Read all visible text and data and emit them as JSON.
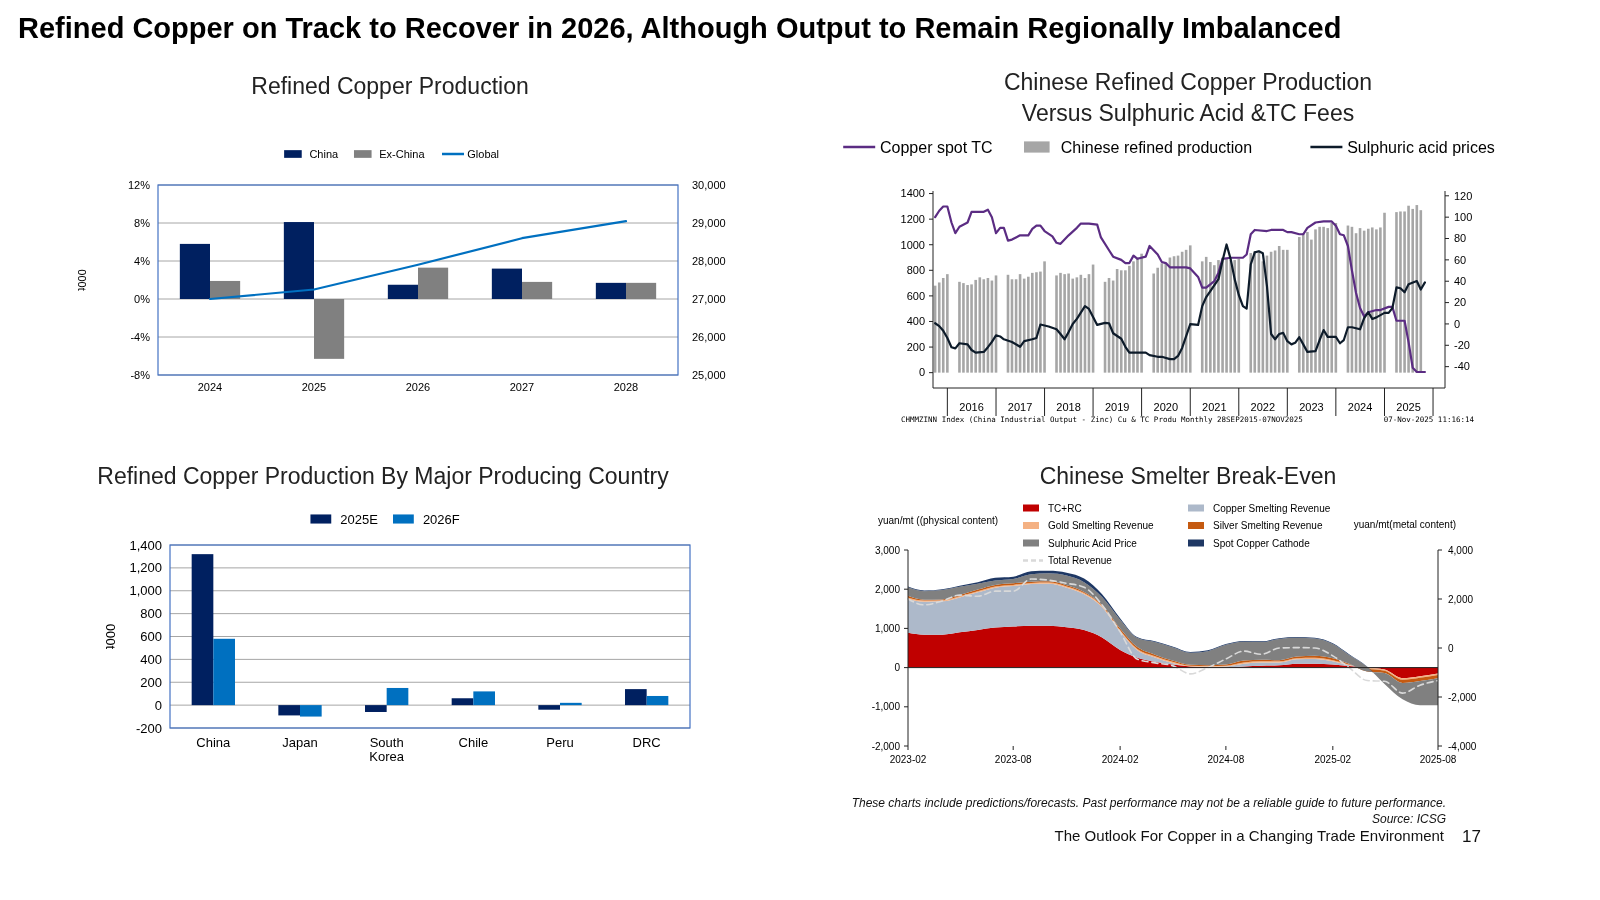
{
  "chart_data": [
    {
      "type": "bar",
      "title": "Refined Copper Production",
      "categories": [
        "2024",
        "2025",
        "2026",
        "2027",
        "2028"
      ],
      "ylabel": "000t",
      "series": [
        {
          "name": "China",
          "color": "#002060",
          "values": [
            5.8,
            8.1,
            1.5,
            3.2,
            1.7
          ]
        },
        {
          "name": "Ex-China",
          "color": "#808080",
          "values": [
            1.9,
            -6.3,
            3.3,
            1.8,
            1.7
          ]
        },
        {
          "name": "Global",
          "type": "line",
          "axis": "y2",
          "color": "#0070c0",
          "values": [
            27000,
            27250,
            27900,
            28600,
            29050
          ]
        }
      ],
      "ylim": [
        -8,
        12
      ],
      "yticks": [
        {
          "value": -8,
          "label": "-8%"
        },
        {
          "value": -4,
          "label": "-4%"
        },
        {
          "value": 0,
          "label": "0%"
        },
        {
          "value": 4,
          "label": "4%"
        },
        {
          "value": 8,
          "label": "8%"
        },
        {
          "value": 12,
          "label": "12%"
        }
      ],
      "y2lim": [
        25000,
        30000
      ],
      "y2ticks": [
        {
          "value": 25000,
          "label": "25,000"
        },
        {
          "value": 26000,
          "label": "26,000"
        },
        {
          "value": 27000,
          "label": "27,000"
        },
        {
          "value": 28000,
          "label": "28,000"
        },
        {
          "value": 29000,
          "label": "29,000"
        },
        {
          "value": 30000,
          "label": "30,000"
        }
      ],
      "grid": "y",
      "legend": "top"
    },
    {
      "type": "bar",
      "title": "Chinese Refined Copper Production Versus Sulphuric Acid &TC Fees",
      "series": [
        {
          "name": "Copper spot TC",
          "type": "line",
          "axis": "y2",
          "color": "#5b2c83",
          "x": [
            "2015-10",
            "2015-11",
            "2015-12",
            "2016-01",
            "2016-02",
            "2016-03",
            "2016-04",
            "2016-06",
            "2016-07",
            "2016-10",
            "2016-11",
            "2016-12",
            "2017-01",
            "2017-02",
            "2017-03",
            "2017-04",
            "2017-05",
            "2017-07",
            "2017-09",
            "2017-10",
            "2017-11",
            "2017-12",
            "2018-01",
            "2018-03",
            "2018-04",
            "2018-05",
            "2018-07",
            "2018-09",
            "2018-10",
            "2018-12",
            "2019-02",
            "2019-03",
            "2019-05",
            "2019-06",
            "2019-08",
            "2019-09",
            "2019-10",
            "2019-11",
            "2019-12",
            "2020-02",
            "2020-03",
            "2020-05",
            "2020-06",
            "2020-07",
            "2020-08",
            "2020-12",
            "2021-01",
            "2021-03",
            "2021-04",
            "2021-05",
            "2021-07",
            "2021-08",
            "2021-09",
            "2021-11",
            "2022-02",
            "2022-03",
            "2022-04",
            "2022-05",
            "2022-08",
            "2022-09",
            "2022-12",
            "2023-01",
            "2023-02",
            "2023-04",
            "2023-05",
            "2023-06",
            "2023-08",
            "2023-10",
            "2023-12",
            "2024-01",
            "2024-02",
            "2024-03",
            "2024-04",
            "2024-05",
            "2024-06",
            "2024-07",
            "2024-08",
            "2024-09",
            "2024-11",
            "2024-12",
            "2025-02",
            "2025-03",
            "2025-04",
            "2025-06",
            "2025-07",
            "2025-08",
            "2025-09",
            "2025-11"
          ],
          "values": [
            100,
            106,
            110,
            110,
            95,
            85,
            91,
            95,
            105,
            105,
            107,
            100,
            85,
            90,
            90,
            78,
            79,
            83,
            83,
            89,
            92,
            92,
            87,
            82,
            76,
            75,
            83,
            90,
            94,
            94,
            93,
            81,
            69,
            63,
            60,
            57,
            57,
            64,
            61,
            63,
            73,
            65,
            58,
            57,
            53,
            53,
            52,
            44,
            34,
            34,
            40,
            48,
            61,
            62,
            62,
            65,
            84,
            88,
            87,
            88,
            88,
            86,
            86,
            84,
            84,
            90,
            95,
            96,
            96,
            92,
            84,
            83,
            73,
            50,
            29,
            15,
            7,
            11,
            13,
            13,
            16,
            16,
            3,
            3,
            -17,
            -41,
            -45,
            -45
          ]
        },
        {
          "name": "Chinese refined production",
          "color": "#a6a6a6",
          "x": [
            "2015-10",
            "2015-11",
            "2015-12",
            "2016-01",
            "2016-04",
            "2016-05",
            "2016-06",
            "2016-07",
            "2016-08",
            "2016-09",
            "2016-10",
            "2016-11",
            "2016-12",
            "2017-01",
            "2017-04",
            "2017-05",
            "2017-06",
            "2017-07",
            "2017-08",
            "2017-09",
            "2017-10",
            "2017-11",
            "2017-12",
            "2018-01",
            "2018-04",
            "2018-05",
            "2018-06",
            "2018-07",
            "2018-08",
            "2018-09",
            "2018-10",
            "2018-11",
            "2018-12",
            "2019-01",
            "2019-04",
            "2019-05",
            "2019-06",
            "2019-07",
            "2019-08",
            "2019-09",
            "2019-10",
            "2019-11",
            "2019-12",
            "2020-01",
            "2020-04",
            "2020-05",
            "2020-06",
            "2020-07",
            "2020-08",
            "2020-09",
            "2020-10",
            "2020-11",
            "2020-12",
            "2021-01",
            "2021-04",
            "2021-05",
            "2021-06",
            "2021-07",
            "2021-08",
            "2021-09",
            "2021-10",
            "2021-11",
            "2021-12",
            "2022-01",
            "2022-04",
            "2022-05",
            "2022-06",
            "2022-07",
            "2022-08",
            "2022-09",
            "2022-10",
            "2022-11",
            "2022-12",
            "2023-01",
            "2023-04",
            "2023-05",
            "2023-06",
            "2023-07",
            "2023-08",
            "2023-09",
            "2023-10",
            "2023-11",
            "2023-12",
            "2024-01",
            "2024-04",
            "2024-05",
            "2024-06",
            "2024-07",
            "2024-08",
            "2024-09",
            "2024-10",
            "2024-11",
            "2024-12",
            "2025-01",
            "2025-04",
            "2025-05",
            "2025-06",
            "2025-07",
            "2025-08",
            "2025-09",
            "2025-10"
          ],
          "values": [
            680,
            705,
            740,
            770,
            710,
            700,
            685,
            690,
            725,
            745,
            730,
            740,
            720,
            760,
            765,
            730,
            730,
            770,
            735,
            750,
            780,
            785,
            790,
            870,
            760,
            780,
            770,
            775,
            735,
            745,
            765,
            740,
            770,
            845,
            710,
            740,
            720,
            810,
            800,
            800,
            835,
            870,
            900,
            930,
            775,
            820,
            855,
            860,
            900,
            910,
            915,
            945,
            960,
            995,
            870,
            905,
            865,
            840,
            880,
            900,
            890,
            880,
            880,
            890,
            935,
            950,
            955,
            870,
            915,
            945,
            955,
            990,
            960,
            960,
            1060,
            1090,
            1100,
            1040,
            1120,
            1140,
            1140,
            1130,
            1170,
            1170,
            1150,
            1140,
            1090,
            1130,
            1110,
            1125,
            1135,
            1120,
            1135,
            1250,
            1255,
            1260,
            1260,
            1305,
            1280,
            1310,
            1270
          ]
        },
        {
          "name": "Sulphuric acid prices",
          "type": "line",
          "color": "#0d1b2a",
          "x": [
            "2015-10",
            "2015-11",
            "2015-12",
            "2016-01",
            "2016-02",
            "2016-03",
            "2016-04",
            "2016-06",
            "2016-07",
            "2016-08",
            "2016-10",
            "2016-11",
            "2016-12",
            "2017-01",
            "2017-02",
            "2017-03",
            "2017-05",
            "2017-07",
            "2017-08",
            "2017-10",
            "2017-11",
            "2017-12",
            "2018-02",
            "2018-04",
            "2018-05",
            "2018-06",
            "2018-07",
            "2018-08",
            "2018-09",
            "2018-11",
            "2018-12",
            "2019-02",
            "2019-04",
            "2019-05",
            "2019-06",
            "2019-08",
            "2019-09",
            "2019-10",
            "2020-02",
            "2020-03",
            "2020-05",
            "2020-06",
            "2020-08",
            "2020-09",
            "2020-10",
            "2020-11",
            "2020-12",
            "2021-01",
            "2021-03",
            "2021-04",
            "2021-05",
            "2021-06",
            "2021-08",
            "2021-09",
            "2021-10",
            "2021-11",
            "2021-12",
            "2022-01",
            "2022-02",
            "2022-03",
            "2022-04",
            "2022-05",
            "2022-06",
            "2022-07",
            "2022-08",
            "2022-09",
            "2022-10",
            "2022-11",
            "2022-12",
            "2023-01",
            "2023-02",
            "2023-03",
            "2023-04",
            "2023-05",
            "2023-06",
            "2023-08",
            "2023-09",
            "2023-10",
            "2023-11",
            "2024-01",
            "2024-02",
            "2024-03",
            "2024-04",
            "2024-05",
            "2024-07",
            "2024-08",
            "2024-09",
            "2024-10",
            "2024-11",
            "2025-01",
            "2025-02",
            "2025-03",
            "2025-04",
            "2025-05",
            "2025-06",
            "2025-07",
            "2025-09",
            "2025-10",
            "2025-11"
          ],
          "values": [
            386,
            364,
            327,
            271,
            199,
            190,
            230,
            221,
            177,
            156,
            162,
            199,
            240,
            292,
            283,
            261,
            240,
            202,
            246,
            261,
            271,
            376,
            361,
            339,
            302,
            261,
            317,
            380,
            420,
            520,
            498,
            373,
            389,
            386,
            308,
            265,
            202,
            156,
            156,
            137,
            124,
            124,
            106,
            106,
            131,
            193,
            286,
            380,
            373,
            520,
            591,
            638,
            731,
            877,
            1002,
            887,
            731,
            607,
            520,
            500,
            846,
            940,
            949,
            933,
            675,
            302,
            261,
            302,
            311,
            246,
            221,
            233,
            277,
            221,
            162,
            168,
            255,
            333,
            280,
            280,
            230,
            255,
            355,
            355,
            339,
            426,
            473,
            420,
            432,
            467,
            467,
            504,
            666,
            660,
            628,
            691,
            716,
            650,
            706
          ]
        }
      ],
      "xlim": [
        "2015-09-15",
        "2026-04-01"
      ],
      "xticks": [
        {
          "value": "2016-01-01",
          "label": null
        },
        {
          "value": "2016-07-01",
          "label": "2016"
        },
        {
          "value": "2017-01-01",
          "label": null
        },
        {
          "value": "2017-07-01",
          "label": "2017"
        },
        {
          "value": "2018-01-01",
          "label": null
        },
        {
          "value": "2018-07-01",
          "label": "2018"
        },
        {
          "value": "2019-01-01",
          "label": null
        },
        {
          "value": "2019-07-01",
          "label": "2019"
        },
        {
          "value": "2020-01-01",
          "label": null
        },
        {
          "value": "2020-07-01",
          "label": "2020"
        },
        {
          "value": "2021-01-01",
          "label": null
        },
        {
          "value": "2021-07-01",
          "label": "2021"
        },
        {
          "value": "2022-01-01",
          "label": null
        },
        {
          "value": "2022-07-01",
          "label": "2022"
        },
        {
          "value": "2023-01-01",
          "label": null
        },
        {
          "value": "2023-07-01",
          "label": "2023"
        },
        {
          "value": "2024-01-01",
          "label": null
        },
        {
          "value": "2024-07-01",
          "label": "2024"
        },
        {
          "value": "2025-01-01",
          "label": null
        },
        {
          "value": "2025-07-01",
          "label": "2025"
        },
        {
          "value": "2026-01-01",
          "label": null
        }
      ],
      "ylim": [
        -120,
        1420
      ],
      "yticks": [
        0,
        200,
        400,
        600,
        800,
        1000,
        1200,
        1400
      ],
      "y2lim": [
        -60,
        124.5
      ],
      "y2ticks": [
        -40,
        -20,
        0,
        20,
        40,
        60,
        80,
        100,
        120
      ],
      "legend": "top",
      "annotations": [
        "CHMMZINN Index (China Industrial Output - Zinc) Cu & TC Produ Monthly 28SEP2015-07NOV2025",
        "07-Nov-2025 11:16:14"
      ]
    },
    {
      "type": "bar",
      "title": "Refined Copper Production By Major Producing Country",
      "categories": [
        "China",
        "Japan",
        "South Korea",
        "Chile",
        "Peru",
        "DRC"
      ],
      "ylabel": "000t",
      "series": [
        {
          "name": "2025E",
          "color": "#002060",
          "values": [
            1320,
            -90,
            -60,
            60,
            -40,
            140
          ]
        },
        {
          "name": "2026F",
          "color": "#0070c0",
          "values": [
            580,
            -100,
            150,
            120,
            20,
            80
          ]
        }
      ],
      "ylim": [
        -200,
        1400
      ],
      "yticks": [
        {
          "value": -200,
          "label": "-200"
        },
        {
          "value": 0,
          "label": "0"
        },
        {
          "value": 200,
          "label": "200"
        },
        {
          "value": 400,
          "label": "400"
        },
        {
          "value": 600,
          "label": "600"
        },
        {
          "value": 800,
          "label": "800"
        },
        {
          "value": 1000,
          "label": "1,000"
        },
        {
          "value": 1200,
          "label": "1,200"
        },
        {
          "value": 1400,
          "label": "1,400"
        }
      ],
      "grid": "y",
      "legend": "top"
    },
    {
      "type": "area",
      "title": "Chinese Smelter Break-Even",
      "stacked": true,
      "ylabel": "yuan/mt ((physical content)",
      "y2label": "yuan/mt(metal content)",
      "x": [
        "2023-02",
        "2023-03",
        "2023-04",
        "2023-05",
        "2023-06",
        "2023-07",
        "2023-08",
        "2023-09",
        "2023-10",
        "2023-11",
        "2023-12",
        "2024-01",
        "2024-02",
        "2024-03",
        "2024-04",
        "2024-05",
        "2024-06",
        "2024-07",
        "2024-08",
        "2024-09",
        "2024-10",
        "2024-11",
        "2024-12",
        "2025-01",
        "2025-02",
        "2025-03",
        "2025-04",
        "2025-05",
        "2025-06",
        "2025-07",
        "2025-08"
      ],
      "series": [
        {
          "name": "TC+RC",
          "color": "#c00000",
          "values": [
            890,
            840,
            840,
            900,
            960,
            1020,
            1050,
            1070,
            1070,
            1030,
            960,
            770,
            450,
            260,
            150,
            80,
            30,
            10,
            10,
            30,
            50,
            60,
            100,
            100,
            80,
            40,
            0,
            -50,
            -270,
            -220,
            -150
          ]
        },
        {
          "name": "Copper Smelting Revenue",
          "color": "#adb9ca",
          "values": [
            860,
            840,
            850,
            890,
            960,
            1020,
            1030,
            1060,
            1070,
            1010,
            910,
            770,
            470,
            190,
            110,
            40,
            0,
            10,
            20,
            70,
            80,
            70,
            110,
            120,
            80,
            20,
            0,
            0,
            0,
            0,
            0
          ]
        },
        {
          "name": "Gold Smelting Revenue",
          "color": "#f4b183",
          "values": [
            30,
            30,
            30,
            30,
            30,
            30,
            30,
            30,
            30,
            30,
            30,
            30,
            30,
            30,
            30,
            30,
            20,
            20,
            20,
            30,
            30,
            30,
            30,
            30,
            30,
            20,
            -30,
            -30,
            -40,
            -40,
            -40
          ]
        },
        {
          "name": "Silver Smelting Revenue",
          "color": "#c55a11",
          "values": [
            50,
            20,
            20,
            30,
            40,
            40,
            40,
            30,
            30,
            30,
            30,
            30,
            50,
            50,
            40,
            30,
            20,
            20,
            30,
            50,
            40,
            30,
            40,
            50,
            50,
            20,
            -70,
            -60,
            -80,
            -80,
            -80
          ]
        },
        {
          "name": "Sulphuric Acid Price",
          "color": "#808080",
          "values": [
            220,
            220,
            240,
            210,
            150,
            110,
            110,
            190,
            210,
            250,
            250,
            200,
            220,
            230,
            320,
            340,
            310,
            360,
            500,
            480,
            450,
            540,
            480,
            440,
            360,
            220,
            120,
            -280,
            -420,
            -620,
            -690
          ]
        },
        {
          "name": "Spot Copper Cathode",
          "color": "#1f3864",
          "values": [
            20,
            20,
            20,
            30,
            40,
            70,
            60,
            80,
            60,
            70,
            90,
            70,
            40,
            20,
            20,
            20,
            20,
            20,
            20,
            20,
            20,
            20,
            20,
            20,
            20,
            20,
            10,
            0,
            0,
            0,
            0
          ]
        },
        {
          "name": "Total Revenue",
          "type": "line",
          "line_style": "dashed",
          "color": "#d9d9d9",
          "values": [
            1750,
            1600,
            1700,
            1850,
            1820,
            1950,
            1950,
            2260,
            2230,
            2150,
            2050,
            1600,
            910,
            220,
            120,
            50,
            -160,
            0,
            220,
            420,
            340,
            500,
            510,
            500,
            300,
            0,
            -330,
            -350,
            -650,
            -450,
            -330
          ]
        }
      ],
      "xlim": [
        "2023-02",
        "2025-08"
      ],
      "xticks": [
        {
          "value": "2023-02",
          "label": "2023-02"
        },
        {
          "value": "2023-08",
          "label": "2023-08"
        },
        {
          "value": "2024-02",
          "label": "2024-02"
        },
        {
          "value": "2024-08",
          "label": "2024-08"
        },
        {
          "value": "2025-02",
          "label": "2025-02"
        },
        {
          "value": "2025-08",
          "label": "2025-08"
        }
      ],
      "ylim": [
        -2000,
        3000
      ],
      "yticks": [
        {
          "value": -2000,
          "label": "-2,000"
        },
        {
          "value": -1000,
          "label": "-1,000"
        },
        {
          "value": 0,
          "label": "0"
        },
        {
          "value": 1000,
          "label": "1,000"
        },
        {
          "value": 2000,
          "label": "2,000"
        },
        {
          "value": 3000,
          "label": "3,000"
        }
      ],
      "y2lim": [
        -4000,
        4000
      ],
      "y2ticks": [
        {
          "value": -4000,
          "label": "-4,000"
        },
        {
          "value": -2000,
          "label": "-2,000"
        },
        {
          "value": 0,
          "label": "0"
        },
        {
          "value": 2000,
          "label": "2,000"
        },
        {
          "value": 4000,
          "label": "4,000"
        }
      ],
      "legend": "top"
    },
    {
      "type": "other",
      "title": "Refined Copper on Track to Recover in 2026, Although Output to Remain Regionally Imbalanced",
      "annotations": [
        "These charts include predictions/forecasts. Past performance may not be a reliable guide to future performance.",
        "Source: ICSG",
        "The Outlook For Copper in a Changing Trade Environment",
        "17"
      ]
    }
  ]
}
